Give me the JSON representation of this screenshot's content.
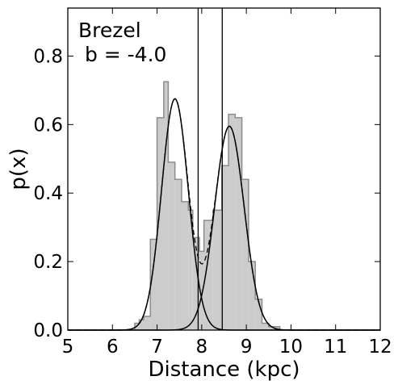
{
  "chart_data": {
    "type": "histogram",
    "xlabel": "Distance (kpc)",
    "ylabel": "p(x)",
    "xlim": [
      5,
      12
    ],
    "ylim": [
      0,
      0.94
    ],
    "xticks": [
      "5",
      "6",
      "7",
      "8",
      "9",
      "10",
      "11",
      "12"
    ],
    "yticks": [
      "0.0",
      "0.2",
      "0.4",
      "0.6",
      "0.8"
    ],
    "annotation_lines": [
      "Brezel",
      " b = -4.0"
    ],
    "grid": false,
    "colors": {
      "hist_fill": "#cccccc",
      "hist_edge": "#8c8c8c",
      "curves": "#000000"
    },
    "histogram": {
      "bin_edges": [
        6.5,
        6.6,
        6.7,
        6.85,
        7.0,
        7.15,
        7.25,
        7.4,
        7.55,
        7.7,
        7.8,
        7.95,
        8.05,
        8.25,
        8.45,
        8.6,
        8.75,
        8.9,
        9.05,
        9.2,
        9.35,
        9.5,
        9.6,
        9.75
      ],
      "values": [
        0.02,
        0.03,
        0.04,
        0.265,
        0.62,
        0.725,
        0.49,
        0.44,
        0.375,
        0.35,
        0.27,
        0.23,
        0.32,
        0.35,
        0.48,
        0.63,
        0.62,
        0.44,
        0.2,
        0.09,
        0.02,
        0.01,
        0.01
      ]
    },
    "components": [
      {
        "mean": 7.4,
        "sigma": 0.3,
        "peak": 0.675
      },
      {
        "mean": 8.62,
        "sigma": 0.33,
        "peak": 0.595
      }
    ],
    "vertical_lines": [
      7.92,
      8.46
    ]
  }
}
